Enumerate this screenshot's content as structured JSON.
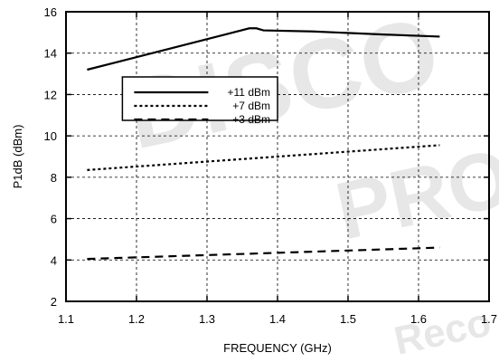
{
  "chart_data": {
    "type": "line",
    "xlabel": "FREQUENCY (GHz)",
    "ylabel": "P1dB (dBm)",
    "xlim": [
      1.1,
      1.7
    ],
    "ylim": [
      2,
      16
    ],
    "xticks": [
      1.1,
      1.2,
      1.3,
      1.4,
      1.5,
      1.6,
      1.7
    ],
    "yticks": [
      2,
      4,
      6,
      8,
      10,
      12,
      14,
      16
    ],
    "xtick_labels": [
      "1.1",
      "1.2",
      "1.3",
      "1.4",
      "1.5",
      "1.6",
      "1.7"
    ],
    "ytick_labels": [
      "2",
      "4",
      "6",
      "8",
      "10",
      "12",
      "14",
      "16"
    ],
    "grid": true,
    "legend_position": "upper-center",
    "series": [
      {
        "name": "+11 dBm",
        "style": "solid",
        "x": [
          1.13,
          1.36,
          1.37,
          1.38,
          1.45,
          1.55,
          1.63
        ],
        "y": [
          13.2,
          15.2,
          15.2,
          15.1,
          15.05,
          14.9,
          14.8
        ]
      },
      {
        "name": "+7 dBm",
        "style": "dotted",
        "x": [
          1.13,
          1.63
        ],
        "y": [
          8.35,
          9.55
        ]
      },
      {
        "name": "+3 dBm",
        "style": "dashed",
        "x": [
          1.13,
          1.63
        ],
        "y": [
          4.05,
          4.6
        ]
      }
    ]
  },
  "watermarks": [
    "DISCO",
    "PRO",
    "Reco"
  ]
}
